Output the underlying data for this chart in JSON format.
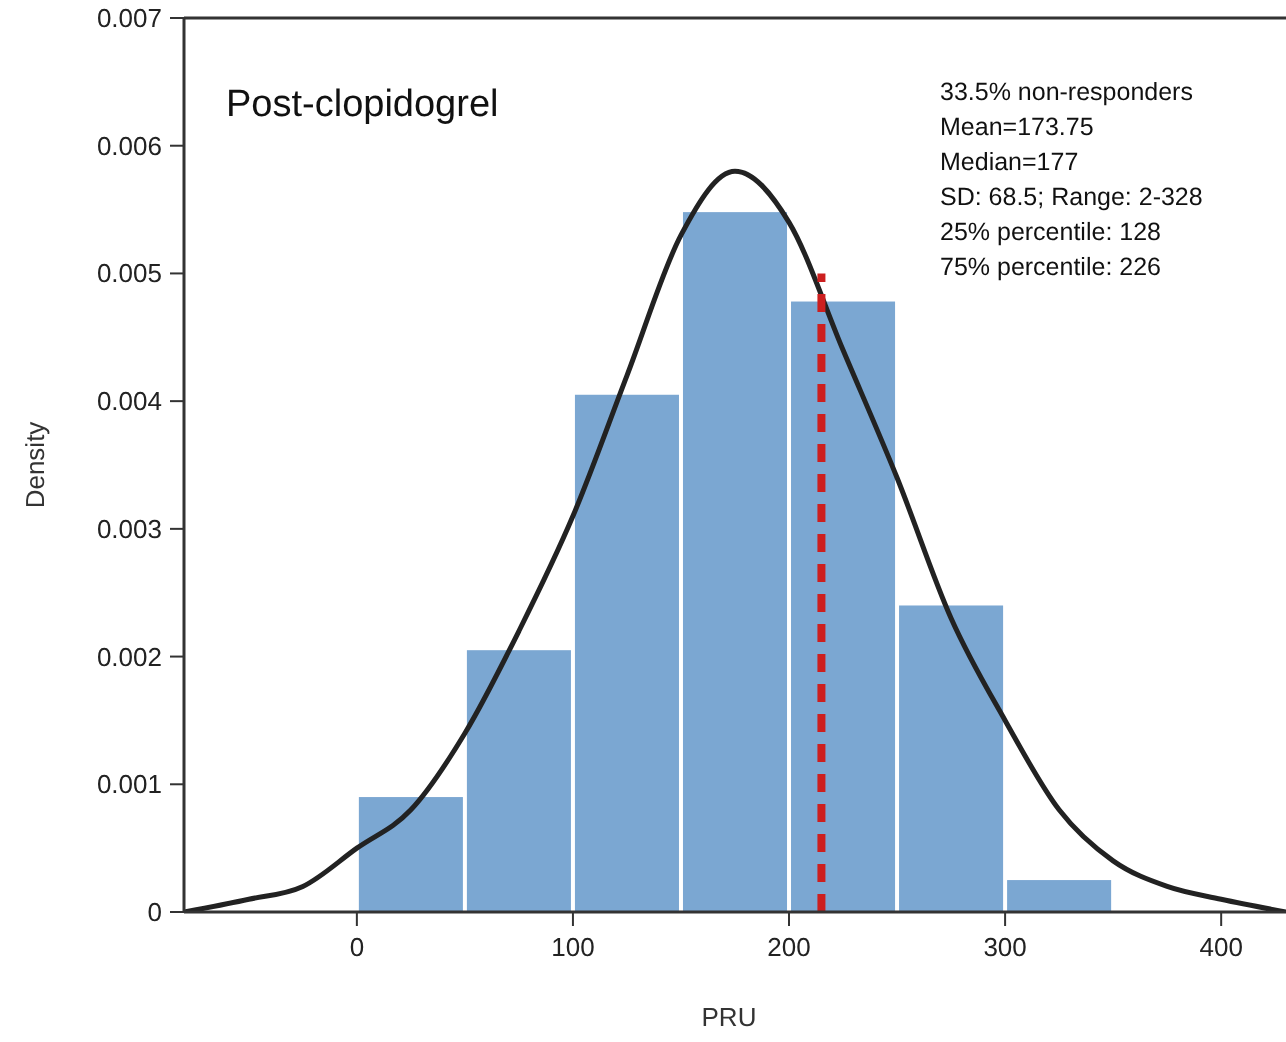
{
  "chart_data": {
    "type": "histogram",
    "title": "Post-clopidogrel",
    "xlabel": "PRU",
    "ylabel": "Density",
    "annotations": [
      "33.5% non-responders",
      "Mean=173.75",
      "Median=177",
      "SD: 68.5; Range: 2-328",
      "25% percentile: 128",
      "75% percentile: 226"
    ],
    "xlim": [
      -80,
      430
    ],
    "xticks": [
      0,
      100,
      200,
      300,
      400
    ],
    "ylim": [
      0,
      0.007
    ],
    "yticks": [
      0,
      0.001,
      0.002,
      0.003,
      0.004,
      0.005,
      0.006,
      0.007
    ],
    "grid": false,
    "marker": "none",
    "series": [
      {
        "color": "#7ba7d2",
        "bins": [
          0,
          50,
          100,
          150,
          200,
          250,
          300,
          350
        ],
        "values": [
          0.0009,
          0.00205,
          0.00405,
          0.00548,
          0.00478,
          0.0024,
          0.00025
        ]
      },
      {
        "type": "line",
        "color": "#222222",
        "line_style": "solid",
        "x": [
          -80,
          -50,
          -25,
          0,
          25,
          50,
          75,
          100,
          125,
          150,
          175,
          200,
          225,
          250,
          275,
          300,
          325,
          350,
          375,
          400,
          430
        ],
        "values": [
          0,
          0.0001,
          0.0002,
          0.0005,
          0.0008,
          0.0014,
          0.0022,
          0.0031,
          0.0042,
          0.0053,
          0.0058,
          0.0054,
          0.0044,
          0.0034,
          0.0023,
          0.0015,
          0.0008,
          0.0004,
          0.0002,
          0.0001,
          0
        ]
      },
      {
        "type": "line",
        "color": "#cc1f1f",
        "line_style": "dashed",
        "x": [
          215,
          215
        ],
        "values": [
          0,
          0.005
        ]
      }
    ]
  }
}
